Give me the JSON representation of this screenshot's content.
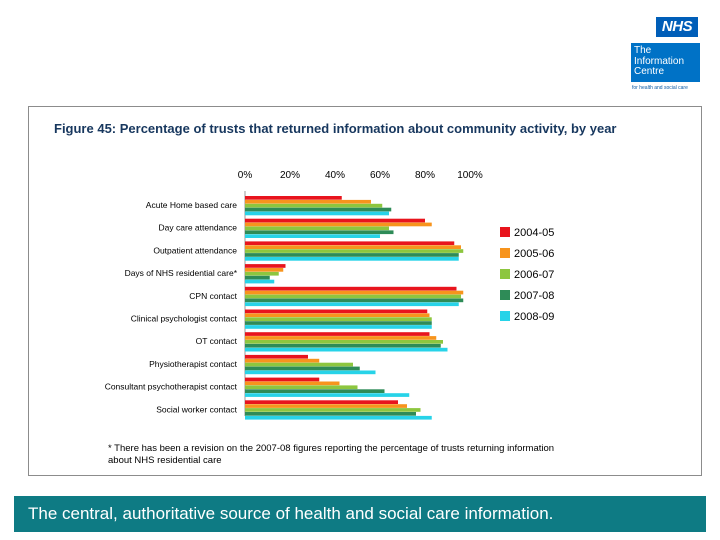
{
  "logos": {
    "nhs": "NHS",
    "info_centre": [
      "The",
      "Information",
      "Centre"
    ],
    "info_centre_tagline": "for health and social care"
  },
  "banner": {
    "text": "The central, authoritative source of health and social care information."
  },
  "chart_data": {
    "type": "bar",
    "orientation": "horizontal",
    "title": "Figure 45:  Percentage of trusts that returned information about community activity, by year",
    "xlim": [
      0,
      100
    ],
    "ticks": [
      0,
      20,
      40,
      60,
      80,
      100
    ],
    "tick_labels": [
      "0%",
      "20%",
      "40%",
      "60%",
      "80%",
      "100%"
    ],
    "categories": [
      "Acute Home based care",
      "Day care attendance",
      "Outpatient attendance",
      "Days of NHS residential care*",
      "CPN contact",
      "Clinical psychologist contact",
      "OT contact",
      "Physiotherapist contact",
      "Consultant psychotherapist contact",
      "Social worker contact"
    ],
    "series": [
      {
        "name": "2004-05",
        "color": "#e8141d",
        "values": [
          43,
          80,
          93,
          18,
          94,
          81,
          82,
          28,
          33,
          68
        ]
      },
      {
        "name": "2005-06",
        "color": "#f7941d",
        "values": [
          56,
          83,
          96,
          17,
          97,
          82,
          85,
          33,
          42,
          72
        ]
      },
      {
        "name": "2006-07",
        "color": "#8dc63f",
        "values": [
          61,
          64,
          97,
          15,
          96,
          83,
          88,
          48,
          50,
          78
        ]
      },
      {
        "name": "2007-08",
        "color": "#2e8b57",
        "values": [
          65,
          66,
          95,
          11,
          97,
          83,
          87,
          51,
          62,
          76
        ]
      },
      {
        "name": "2008-09",
        "color": "#27d3e8",
        "values": [
          64,
          60,
          95,
          13,
          95,
          83,
          90,
          58,
          73,
          83
        ]
      }
    ],
    "legend_position": "right",
    "footnote": [
      "* There has been a revision on the 2007-08 figures reporting the percentage of trusts returning information",
      "about NHS residential care"
    ]
  }
}
